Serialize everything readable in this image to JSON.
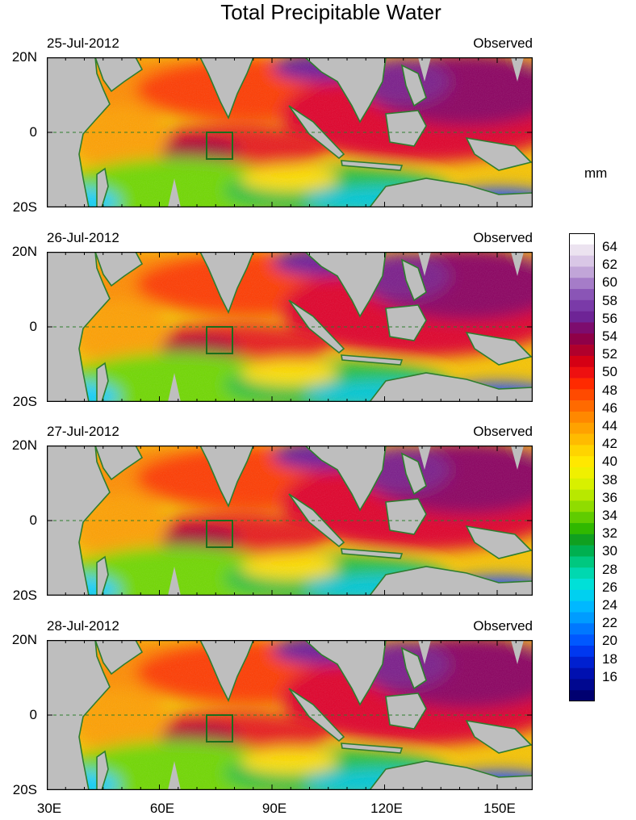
{
  "title": "Total Precipitable Water",
  "unit": "mm",
  "panels": [
    {
      "date": "25-Jul-2012",
      "label": "Observed"
    },
    {
      "date": "26-Jul-2012",
      "label": "Observed"
    },
    {
      "date": "27-Jul-2012",
      "label": "Observed"
    },
    {
      "date": "28-Jul-2012",
      "label": "Observed"
    }
  ],
  "lat_labels": {
    "north": "20N",
    "equator": "0",
    "south": "20S"
  },
  "lon_labels": [
    "30E",
    "60E",
    "90E",
    "120E",
    "150E"
  ],
  "colorbar": {
    "labels": [
      "64",
      "62",
      "60",
      "58",
      "56",
      "54",
      "52",
      "50",
      "48",
      "46",
      "44",
      "42",
      "40",
      "38",
      "36",
      "34",
      "32",
      "30",
      "28",
      "26",
      "24",
      "22",
      "20",
      "18",
      "16"
    ]
  },
  "colors": {
    "land": "#bebebe",
    "coastline": "#2e7d2e",
    "box": "#1b6e1b"
  }
}
